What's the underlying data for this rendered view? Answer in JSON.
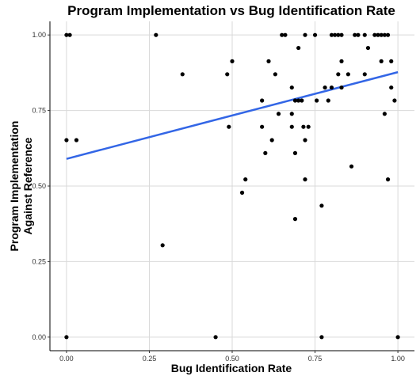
{
  "chart_data": {
    "type": "scatter",
    "title": "Program Implementation vs Bug Identification Rate",
    "xlabel": "Bug Identification Rate",
    "ylabel_lines": [
      "Program Implementation",
      "Against Reference"
    ],
    "xlim": [
      -0.05,
      1.05
    ],
    "ylim": [
      -0.045,
      1.045
    ],
    "x_ticks": [
      0,
      0.25,
      0.5,
      0.75,
      1
    ],
    "x_tick_labels": [
      "0.00",
      "0.25",
      "0.50",
      "0.75",
      "1.00"
    ],
    "y_ticks": [
      0,
      0.25,
      0.5,
      0.75,
      1
    ],
    "y_tick_labels": [
      "0.00",
      "0.25",
      "0.50",
      "0.75",
      "1.00"
    ],
    "grid": true,
    "point_color": "#000000",
    "trend_color": "#3366e6",
    "trend_line": {
      "x": [
        0,
        1
      ],
      "y": [
        0.59,
        0.877
      ]
    },
    "points": [
      [
        0.0,
        1.0
      ],
      [
        0.01,
        1.0
      ],
      [
        0.27,
        1.0
      ],
      [
        0.0,
        0.652
      ],
      [
        0.03,
        0.652
      ],
      [
        0.0,
        0.0
      ],
      [
        0.29,
        0.304
      ],
      [
        0.35,
        0.87
      ],
      [
        0.45,
        0.0
      ],
      [
        0.485,
        0.87
      ],
      [
        0.49,
        0.696
      ],
      [
        0.5,
        0.913
      ],
      [
        0.53,
        0.478
      ],
      [
        0.54,
        0.522
      ],
      [
        0.59,
        0.783
      ],
      [
        0.59,
        0.696
      ],
      [
        0.6,
        0.609
      ],
      [
        0.61,
        0.913
      ],
      [
        0.62,
        0.652
      ],
      [
        0.63,
        0.87
      ],
      [
        0.64,
        0.739
      ],
      [
        0.65,
        1.0
      ],
      [
        0.66,
        1.0
      ],
      [
        0.68,
        0.826
      ],
      [
        0.68,
        0.739
      ],
      [
        0.68,
        0.696
      ],
      [
        0.69,
        0.783
      ],
      [
        0.69,
        0.609
      ],
      [
        0.69,
        0.391
      ],
      [
        0.7,
        0.783
      ],
      [
        0.7,
        0.957
      ],
      [
        0.71,
        0.783
      ],
      [
        0.715,
        0.696
      ],
      [
        0.72,
        1.0
      ],
      [
        0.72,
        0.652
      ],
      [
        0.72,
        0.522
      ],
      [
        0.73,
        0.696
      ],
      [
        0.75,
        1.0
      ],
      [
        0.755,
        0.783
      ],
      [
        0.77,
        0.435
      ],
      [
        0.77,
        0.0
      ],
      [
        0.78,
        0.826
      ],
      [
        0.79,
        0.783
      ],
      [
        0.8,
        1.0
      ],
      [
        0.8,
        0.826
      ],
      [
        0.81,
        1.0
      ],
      [
        0.82,
        1.0
      ],
      [
        0.82,
        0.87
      ],
      [
        0.83,
        1.0
      ],
      [
        0.83,
        0.913
      ],
      [
        0.83,
        0.826
      ],
      [
        0.85,
        0.87
      ],
      [
        0.86,
        0.565
      ],
      [
        0.87,
        1.0
      ],
      [
        0.88,
        1.0
      ],
      [
        0.9,
        0.87
      ],
      [
        0.9,
        1.0
      ],
      [
        0.91,
        0.957
      ],
      [
        0.93,
        1.0
      ],
      [
        0.94,
        1.0
      ],
      [
        0.95,
        0.913
      ],
      [
        0.95,
        1.0
      ],
      [
        0.96,
        1.0
      ],
      [
        0.96,
        0.739
      ],
      [
        0.97,
        0.522
      ],
      [
        0.97,
        1.0
      ],
      [
        0.98,
        0.913
      ],
      [
        0.98,
        0.826
      ],
      [
        0.99,
        0.783
      ],
      [
        1.0,
        0.0
      ]
    ]
  }
}
